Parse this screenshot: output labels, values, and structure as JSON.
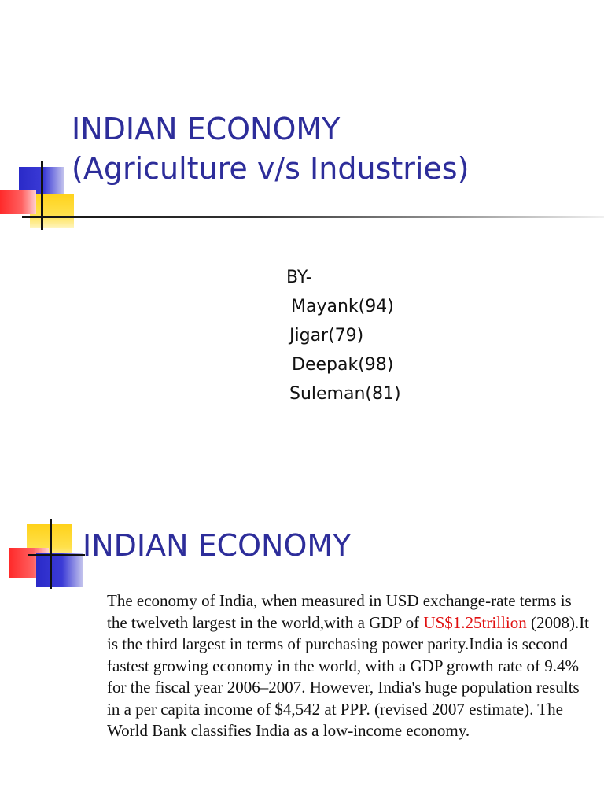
{
  "slide1": {
    "title_lines": [
      "INDIAN ECONOMY",
      "(Agriculture v/s Industries)"
    ],
    "by_label": "BY-",
    "authors": [
      "Mayank(94)",
      "Jigar(79)",
      "Deepak(98)",
      "Suleman(81)"
    ]
  },
  "slide2": {
    "title": "INDIAN ECONOMY",
    "body_before": "The economy of India, when measured in USD exchange-rate terms is the twelveth largest in the world,with a GDP of ",
    "body_highlight": "US$1.25trillion",
    "body_after": " (2008).It is the third largest in terms of purchasing power parity.India is second fastest growing economy in the world, with a GDP growth rate of 9.4% for the fiscal year 2006–2007. However, India's huge population results in a per capita income of $4,542 at PPP. (revised 2007 estimate). The World Bank classifies India as a low-income economy."
  },
  "colors": {
    "title": "#2d2d9a",
    "highlight": "#e01010",
    "deco_blue": "#2a2ac8",
    "deco_yellow": "#ffd21a",
    "deco_red": "#ff2a2a"
  },
  "icons": [
    "slide-decoration-squares",
    "slide-decoration-lines"
  ]
}
